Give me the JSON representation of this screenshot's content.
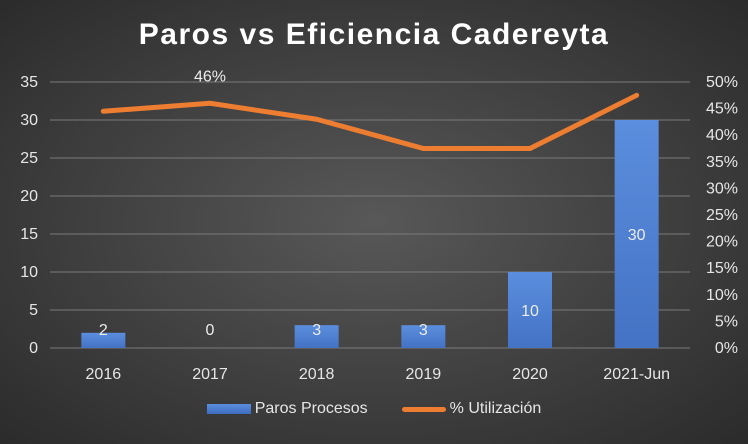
{
  "chart_data": {
    "type": "bar",
    "title": "Paros vs Eficiencia Cadereyta",
    "categories": [
      "2016",
      "2017",
      "2018",
      "2019",
      "2020",
      "2021-Jun"
    ],
    "series": [
      {
        "name": "Paros Procesos",
        "type": "bar",
        "axis": "left",
        "values": [
          2,
          0,
          3,
          3,
          10,
          30
        ],
        "labels": [
          "2",
          "0",
          "3",
          "3",
          "10",
          "30"
        ],
        "color": "#4472c4"
      },
      {
        "name": "% Utilización",
        "type": "line",
        "axis": "right",
        "values": [
          44.5,
          46,
          43,
          37.5,
          37.5,
          47.5
        ],
        "labels": [
          "",
          "46%",
          "",
          "",
          "",
          ""
        ],
        "color": "#ed7d31"
      }
    ],
    "y_left": {
      "min": 0,
      "max": 35,
      "ticks": [
        "0",
        "5",
        "10",
        "15",
        "20",
        "25",
        "30",
        "35"
      ]
    },
    "y_right": {
      "min": 0,
      "max": 50,
      "ticks": [
        "0%",
        "5%",
        "10%",
        "15%",
        "20%",
        "25%",
        "30%",
        "35%",
        "40%",
        "45%",
        "50%"
      ]
    },
    "grid": true,
    "legend_position": "bottom"
  }
}
